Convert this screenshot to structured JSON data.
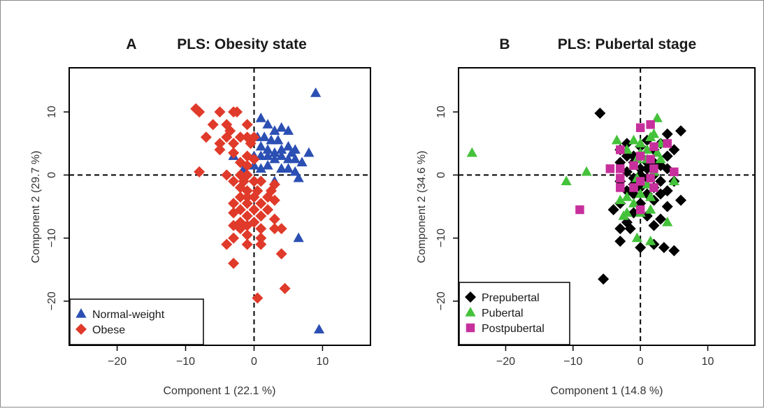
{
  "figure": {
    "panels": [
      {
        "letter": "A",
        "title": "PLS: Obesity state"
      },
      {
        "letter": "B",
        "title": "PLS: Pubertal stage"
      }
    ]
  },
  "chart_data": [
    {
      "type": "scatter",
      "title": "PLS: Obesity state",
      "panel_letter": "A",
      "xlabel": "Component 1 (22.1 %)",
      "ylabel": "Component 2 (29.7 %)",
      "xlim": [
        -27,
        17
      ],
      "ylim": [
        -27,
        17
      ],
      "xticks": [
        -20,
        -10,
        0,
        10
      ],
      "yticks": [
        -20,
        -10,
        0,
        10
      ],
      "reference_lines": {
        "x": 0,
        "y": 0,
        "style": "dashed"
      },
      "legend_position": "bottom-left",
      "series": [
        {
          "name": "Normal-weight",
          "marker": "triangle",
          "color": "#2b4fb3",
          "points": [
            [
              9,
              13
            ],
            [
              1,
              9
            ],
            [
              2,
              8
            ],
            [
              3,
              7
            ],
            [
              4,
              7.5
            ],
            [
              5,
              7
            ],
            [
              0.5,
              6
            ],
            [
              1.5,
              6
            ],
            [
              2.5,
              5.5
            ],
            [
              3.5,
              5.5
            ],
            [
              1,
              4.5
            ],
            [
              2,
              4
            ],
            [
              4,
              4
            ],
            [
              5,
              4.5
            ],
            [
              6,
              4
            ],
            [
              3,
              3.5
            ],
            [
              5.5,
              3.5
            ],
            [
              8,
              3.5
            ],
            [
              -3,
              3
            ],
            [
              0,
              3
            ],
            [
              1,
              3
            ],
            [
              2,
              3
            ],
            [
              3,
              2.5
            ],
            [
              4,
              3
            ],
            [
              5,
              2.5
            ],
            [
              6,
              2.5
            ],
            [
              7,
              2
            ],
            [
              -1.5,
              1
            ],
            [
              0,
              1.5
            ],
            [
              1,
              1
            ],
            [
              2,
              1.5
            ],
            [
              4,
              1
            ],
            [
              5,
              1
            ],
            [
              6,
              0.5
            ],
            [
              6.5,
              -0.5
            ],
            [
              3,
              -1
            ],
            [
              6.5,
              -10
            ],
            [
              9.5,
              -24.5
            ]
          ]
        },
        {
          "name": "Obese",
          "marker": "diamond",
          "color": "#e03a2a",
          "points": [
            [
              -8.5,
              10.5
            ],
            [
              -8,
              10
            ],
            [
              -5,
              10
            ],
            [
              -3,
              10
            ],
            [
              -2.5,
              10
            ],
            [
              -6,
              8
            ],
            [
              -4,
              8
            ],
            [
              -1,
              8
            ],
            [
              -3.5,
              7
            ],
            [
              -7,
              6
            ],
            [
              -4,
              6
            ],
            [
              -2,
              6
            ],
            [
              -1,
              6
            ],
            [
              0,
              6
            ],
            [
              -5,
              5
            ],
            [
              -3,
              5
            ],
            [
              -0.5,
              5
            ],
            [
              -5,
              4
            ],
            [
              -3,
              3.5
            ],
            [
              -1,
              3
            ],
            [
              0,
              2.5
            ],
            [
              -2,
              2
            ],
            [
              -1,
              1.5
            ],
            [
              -8,
              0.5
            ],
            [
              -4,
              0
            ],
            [
              -2,
              0
            ],
            [
              -1,
              0
            ],
            [
              -3,
              -1
            ],
            [
              -1.5,
              -1
            ],
            [
              0,
              -1
            ],
            [
              1,
              -1
            ],
            [
              3,
              -1.5
            ],
            [
              -2,
              -2
            ],
            [
              -1,
              -2.5
            ],
            [
              0.5,
              -2.5
            ],
            [
              2.5,
              -2.5
            ],
            [
              -2,
              -3.5
            ],
            [
              -1,
              -3.5
            ],
            [
              0,
              -3.5
            ],
            [
              2,
              -3.5
            ],
            [
              3,
              -4
            ],
            [
              -3,
              -4.5
            ],
            [
              -1,
              -4.5
            ],
            [
              1,
              -4.5
            ],
            [
              2,
              -5.5
            ],
            [
              -2,
              -5.5
            ],
            [
              0,
              -5.5
            ],
            [
              -3,
              -6
            ],
            [
              -1,
              -6.5
            ],
            [
              1,
              -6.5
            ],
            [
              3,
              -7
            ],
            [
              -2,
              -7.5
            ],
            [
              0,
              -7.5
            ],
            [
              -3,
              -8
            ],
            [
              -1,
              -8
            ],
            [
              1,
              -8.5
            ],
            [
              3,
              -8.5
            ],
            [
              -2,
              -8.5
            ],
            [
              4,
              -8.5
            ],
            [
              -1,
              -9.5
            ],
            [
              1,
              -10
            ],
            [
              -3,
              -10
            ],
            [
              -4,
              -11
            ],
            [
              -1,
              -11
            ],
            [
              1,
              -11
            ],
            [
              4,
              -12.5
            ],
            [
              -3,
              -14
            ],
            [
              4.5,
              -18
            ],
            [
              0.5,
              -19.5
            ]
          ]
        }
      ]
    },
    {
      "type": "scatter",
      "title": "PLS: Pubertal stage",
      "panel_letter": "B",
      "xlabel": "Component 1 (14.8 %)",
      "ylabel": "Component 2 (34.6 %)",
      "xlim": [
        -27,
        17
      ],
      "ylim": [
        -27,
        17
      ],
      "xticks": [
        -20,
        -10,
        0,
        10
      ],
      "yticks": [
        -20,
        -10,
        0,
        10
      ],
      "reference_lines": {
        "x": 0,
        "y": 0,
        "style": "dashed"
      },
      "legend_position": "bottom-left",
      "series": [
        {
          "name": "Prepubertal",
          "marker": "diamond",
          "color": "#000000",
          "points": [
            [
              -6,
              9.8
            ],
            [
              6,
              7
            ],
            [
              4,
              6.5
            ],
            [
              -2,
              5
            ],
            [
              0,
              4.5
            ],
            [
              1,
              5.5
            ],
            [
              3,
              5
            ],
            [
              5,
              4
            ],
            [
              -3,
              4
            ],
            [
              2,
              4
            ],
            [
              -2,
              3
            ],
            [
              -1,
              3
            ],
            [
              0,
              3
            ],
            [
              4,
              3
            ],
            [
              1,
              2
            ],
            [
              2,
              2
            ],
            [
              -3,
              2
            ],
            [
              -1,
              2
            ],
            [
              3,
              1.5
            ],
            [
              4,
              1
            ],
            [
              0,
              1
            ],
            [
              1,
              1
            ],
            [
              -2,
              0.5
            ],
            [
              0,
              0
            ],
            [
              2,
              0
            ],
            [
              -1,
              -0.5
            ],
            [
              1,
              -0.5
            ],
            [
              3,
              -1
            ],
            [
              5,
              -1
            ],
            [
              -3,
              -1
            ],
            [
              -1,
              -1.5
            ],
            [
              0,
              -2
            ],
            [
              2,
              -2
            ],
            [
              4,
              -2.5
            ],
            [
              -2,
              -2.5
            ],
            [
              1,
              -3
            ],
            [
              3,
              -3
            ],
            [
              -1,
              -3
            ],
            [
              6,
              -4
            ],
            [
              -3,
              -4.5
            ],
            [
              0,
              -4.5
            ],
            [
              2,
              -4
            ],
            [
              4,
              -5
            ],
            [
              -4,
              -5.5
            ],
            [
              -1,
              -6
            ],
            [
              1,
              -6.5
            ],
            [
              3,
              -7
            ],
            [
              -2,
              -7.5
            ],
            [
              -3,
              -8.5
            ],
            [
              -1.5,
              -8.5
            ],
            [
              2,
              -8
            ],
            [
              -3,
              -10.5
            ],
            [
              0,
              -11.5
            ],
            [
              3.5,
              -11.5
            ],
            [
              5,
              -12
            ],
            [
              2,
              -11
            ],
            [
              -5.5,
              -16.5
            ]
          ]
        },
        {
          "name": "Pubertal",
          "marker": "triangle",
          "color": "#44c23a",
          "points": [
            [
              -25,
              3.5
            ],
            [
              2.5,
              9
            ],
            [
              -1,
              5.5
            ],
            [
              0,
              5
            ],
            [
              -3.5,
              5.5
            ],
            [
              1.5,
              6
            ],
            [
              2,
              6.5
            ],
            [
              3,
              5
            ],
            [
              -2,
              4
            ],
            [
              0,
              3.5
            ],
            [
              1,
              4
            ],
            [
              2.5,
              3.5
            ],
            [
              -0.5,
              2.5
            ],
            [
              1,
              2.5
            ],
            [
              3,
              2.5
            ],
            [
              -1,
              1.5
            ],
            [
              2,
              0.5
            ],
            [
              -8,
              0.5
            ],
            [
              -11,
              -1
            ],
            [
              -0.5,
              -0.5
            ],
            [
              1,
              -1.5
            ],
            [
              5,
              -1
            ],
            [
              -2,
              -3.5
            ],
            [
              0,
              -3
            ],
            [
              -3,
              -4
            ],
            [
              1.5,
              -3.5
            ],
            [
              -1,
              -4.5
            ],
            [
              1.5,
              -5.5
            ],
            [
              -2,
              -6
            ],
            [
              -2.5,
              -6.5
            ],
            [
              0,
              -6
            ],
            [
              4,
              -7.5
            ],
            [
              -0.5,
              -10
            ],
            [
              1.5,
              -10.5
            ]
          ]
        },
        {
          "name": "Postpubertal",
          "marker": "square",
          "color": "#c7309c",
          "points": [
            [
              0,
              7.5
            ],
            [
              1.5,
              8
            ],
            [
              4,
              5
            ],
            [
              2,
              4.5
            ],
            [
              -3,
              4
            ],
            [
              0,
              3
            ],
            [
              1.5,
              2.5
            ],
            [
              -1,
              1.5
            ],
            [
              2,
              1
            ],
            [
              -3,
              1
            ],
            [
              -4.5,
              1
            ],
            [
              5,
              0.5
            ],
            [
              -3,
              -0.5
            ],
            [
              0,
              -1
            ],
            [
              1.5,
              -0.5
            ],
            [
              -1,
              -2
            ],
            [
              2,
              -2
            ],
            [
              -3,
              -2
            ],
            [
              0,
              -5.5
            ],
            [
              -9,
              -5.5
            ]
          ]
        }
      ]
    }
  ]
}
